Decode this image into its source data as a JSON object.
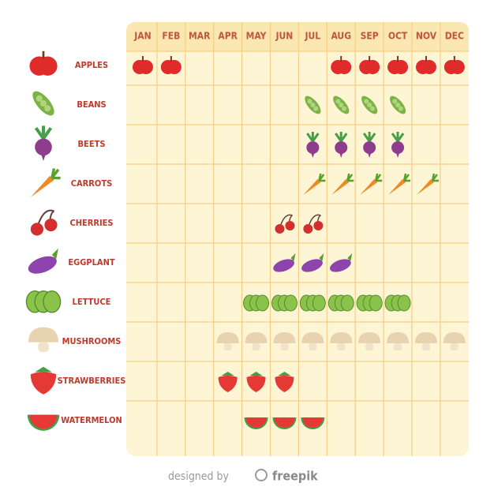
{
  "header": {
    "months": [
      "JAN",
      "FEB",
      "MAR",
      "APR",
      "MAY",
      "JUN",
      "JUL",
      "AUG",
      "SEP",
      "OCT",
      "NOV",
      "DEC"
    ]
  },
  "rows": [
    {
      "name": "APPLES",
      "in_season": [
        true,
        true,
        false,
        false,
        false,
        false,
        false,
        true,
        true,
        true,
        true,
        true
      ]
    },
    {
      "name": "BEANS",
      "in_season": [
        false,
        false,
        false,
        false,
        false,
        false,
        true,
        true,
        true,
        true,
        false,
        false
      ]
    },
    {
      "name": "BEETS",
      "in_season": [
        false,
        false,
        false,
        false,
        false,
        false,
        true,
        true,
        true,
        true,
        false,
        false
      ]
    },
    {
      "name": "CARROTS",
      "in_season": [
        false,
        false,
        false,
        false,
        false,
        false,
        true,
        true,
        true,
        true,
        true,
        false
      ]
    },
    {
      "name": "CHERRIES",
      "in_season": [
        false,
        false,
        false,
        false,
        false,
        true,
        true,
        false,
        false,
        false,
        false,
        false
      ]
    },
    {
      "name": "EGGPLANT",
      "in_season": [
        false,
        false,
        false,
        false,
        false,
        true,
        true,
        true,
        false,
        false,
        false,
        false
      ]
    },
    {
      "name": "LETTUCE",
      "in_season": [
        false,
        false,
        false,
        false,
        true,
        true,
        true,
        true,
        true,
        true,
        false,
        false
      ]
    },
    {
      "name": "MUSHROOMS",
      "in_season": [
        false,
        false,
        false,
        true,
        true,
        true,
        true,
        true,
        true,
        true,
        true,
        true
      ]
    },
    {
      "name": "STRAWBERRIES",
      "in_season": [
        false,
        false,
        false,
        true,
        true,
        true,
        false,
        false,
        false,
        false,
        false,
        false
      ]
    },
    {
      "name": "WATERMELON",
      "in_season": [
        false,
        false,
        false,
        false,
        true,
        true,
        true,
        false,
        false,
        false,
        false,
        false
      ]
    }
  ],
  "footer": {
    "credit": "designed by",
    "brand": "freepik"
  }
}
